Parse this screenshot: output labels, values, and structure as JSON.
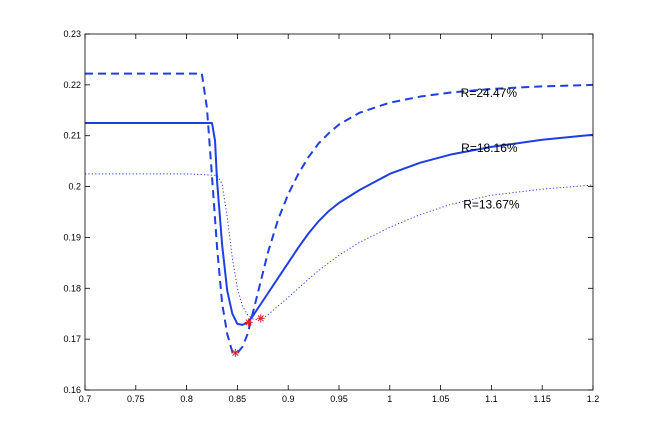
{
  "chart_data": {
    "type": "line",
    "title": "",
    "xlabel": "",
    "ylabel": "",
    "xlim": [
      0.7,
      1.2
    ],
    "ylim": [
      0.16,
      0.23
    ],
    "grid": false,
    "x_ticks": [
      0.7,
      0.75,
      0.8,
      0.85,
      0.9,
      0.95,
      1,
      1.05,
      1.1,
      1.15,
      1.2
    ],
    "x_tick_labels": [
      "0.7",
      "0.75",
      "0.8",
      "0.85",
      "0.9",
      "0.95",
      "1",
      "1.05",
      "1.1",
      "1.15",
      "1.2"
    ],
    "y_ticks": [
      0.16,
      0.17,
      0.18,
      0.19,
      0.2,
      0.21,
      0.22,
      0.23
    ],
    "y_tick_labels": [
      "0.16",
      "0.17",
      "0.18",
      "0.19",
      "0.2",
      "0.21",
      "0.22",
      "0.23"
    ],
    "line_color": "#1f3fe0",
    "marker_color": "#e0202a",
    "series": [
      {
        "style": "dashed",
        "x": [
          0.7,
          0.75,
          0.8,
          0.815,
          0.82,
          0.825,
          0.83,
          0.835,
          0.84,
          0.845,
          0.85,
          0.855,
          0.86,
          0.865,
          0.87,
          0.875,
          0.88,
          0.89,
          0.9,
          0.91,
          0.92,
          0.93,
          0.94,
          0.95,
          0.97,
          1.0,
          1.03,
          1.06,
          1.1,
          1.15,
          1.2
        ],
        "y": [
          0.2222,
          0.2222,
          0.2222,
          0.2222,
          0.2155,
          0.202,
          0.188,
          0.177,
          0.171,
          0.1675,
          0.1673,
          0.1685,
          0.171,
          0.175,
          0.179,
          0.183,
          0.187,
          0.1935,
          0.1985,
          0.2025,
          0.2058,
          0.2085,
          0.2105,
          0.2122,
          0.2145,
          0.2165,
          0.2177,
          0.2185,
          0.2192,
          0.2197,
          0.22
        ],
        "marker": {
          "x": 0.848,
          "y": 0.1673
        }
      },
      {
        "style": "solid",
        "x": [
          0.7,
          0.75,
          0.8,
          0.825,
          0.828,
          0.83,
          0.835,
          0.84,
          0.845,
          0.85,
          0.855,
          0.86,
          0.865,
          0.87,
          0.875,
          0.88,
          0.89,
          0.9,
          0.91,
          0.92,
          0.93,
          0.94,
          0.95,
          0.97,
          1.0,
          1.03,
          1.06,
          1.1,
          1.15,
          1.2
        ],
        "y": [
          0.2125,
          0.2125,
          0.2125,
          0.2125,
          0.209,
          0.201,
          0.1885,
          0.1795,
          0.175,
          0.173,
          0.1728,
          0.1733,
          0.1745,
          0.176,
          0.1775,
          0.179,
          0.182,
          0.185,
          0.188,
          0.1908,
          0.1932,
          0.1952,
          0.1968,
          0.1993,
          0.2025,
          0.2047,
          0.2063,
          0.2078,
          0.2092,
          0.2102
        ],
        "marker": {
          "x": 0.861,
          "y": 0.1733
        }
      },
      {
        "style": "dotted",
        "x": [
          0.7,
          0.75,
          0.8,
          0.83,
          0.835,
          0.84,
          0.845,
          0.85,
          0.855,
          0.86,
          0.865,
          0.87,
          0.875,
          0.88,
          0.89,
          0.9,
          0.91,
          0.92,
          0.93,
          0.94,
          0.95,
          0.97,
          1.0,
          1.03,
          1.06,
          1.1,
          1.15,
          1.2
        ],
        "y": [
          0.2025,
          0.2025,
          0.2025,
          0.2022,
          0.2005,
          0.194,
          0.186,
          0.18,
          0.1765,
          0.1748,
          0.174,
          0.1738,
          0.1741,
          0.1748,
          0.1765,
          0.1782,
          0.18,
          0.1818,
          0.1835,
          0.185,
          0.1865,
          0.189,
          0.192,
          0.1945,
          0.1965,
          0.1983,
          0.1995,
          0.2003
        ],
        "marker": {
          "x": 0.873,
          "y": 0.1741
        }
      }
    ],
    "annotations": [
      {
        "text": "R=24.47%",
        "x": 1.0975,
        "y": 0.2176
      },
      {
        "text": "R=18.16%",
        "x": 1.098,
        "y": 0.2068
      },
      {
        "text": "R=13.67%",
        "x": 1.1,
        "y": 0.1957
      }
    ]
  }
}
